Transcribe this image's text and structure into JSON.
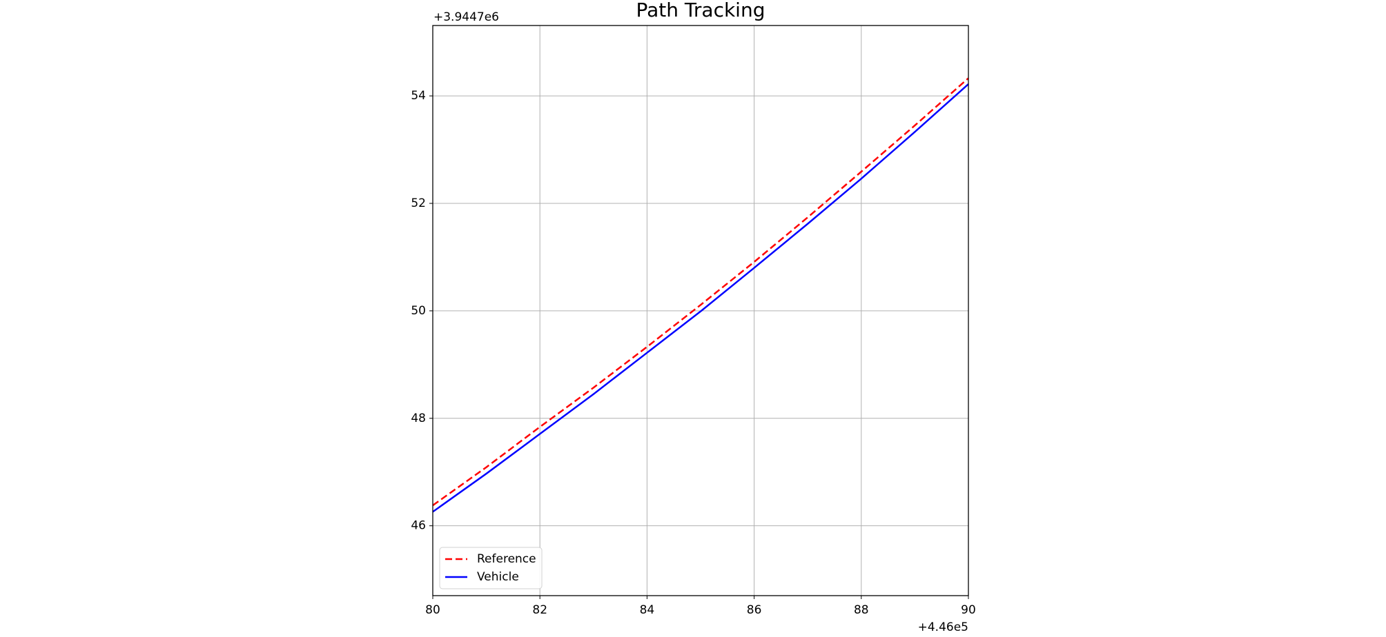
{
  "chart_data": {
    "type": "line",
    "title": "Path Tracking",
    "x": [
      80,
      81,
      82,
      83,
      84,
      85,
      86,
      87,
      88,
      89,
      90
    ],
    "series": [
      {
        "name": "Reference",
        "color": "#ff0000",
        "linestyle": "dashed",
        "values": [
          46.38,
          47.09,
          47.84,
          48.57,
          49.33,
          50.11,
          50.91,
          51.74,
          52.59,
          53.45,
          54.33
        ]
      },
      {
        "name": "Vehicle",
        "color": "#0000ff",
        "linestyle": "solid",
        "values": [
          46.26,
          46.97,
          47.71,
          48.45,
          49.22,
          49.99,
          50.8,
          51.62,
          52.46,
          53.33,
          54.22
        ]
      }
    ],
    "xlim": [
      80,
      90
    ],
    "ylim": [
      44.7,
      55.31
    ],
    "xticks": [
      80,
      82,
      84,
      86,
      88,
      90
    ],
    "yticks": [
      46,
      48,
      50,
      52,
      54
    ],
    "x_offset_label": "+4.46e5",
    "y_offset_label": "+3.9447e6",
    "grid": true,
    "legend_position": "lower-left"
  }
}
